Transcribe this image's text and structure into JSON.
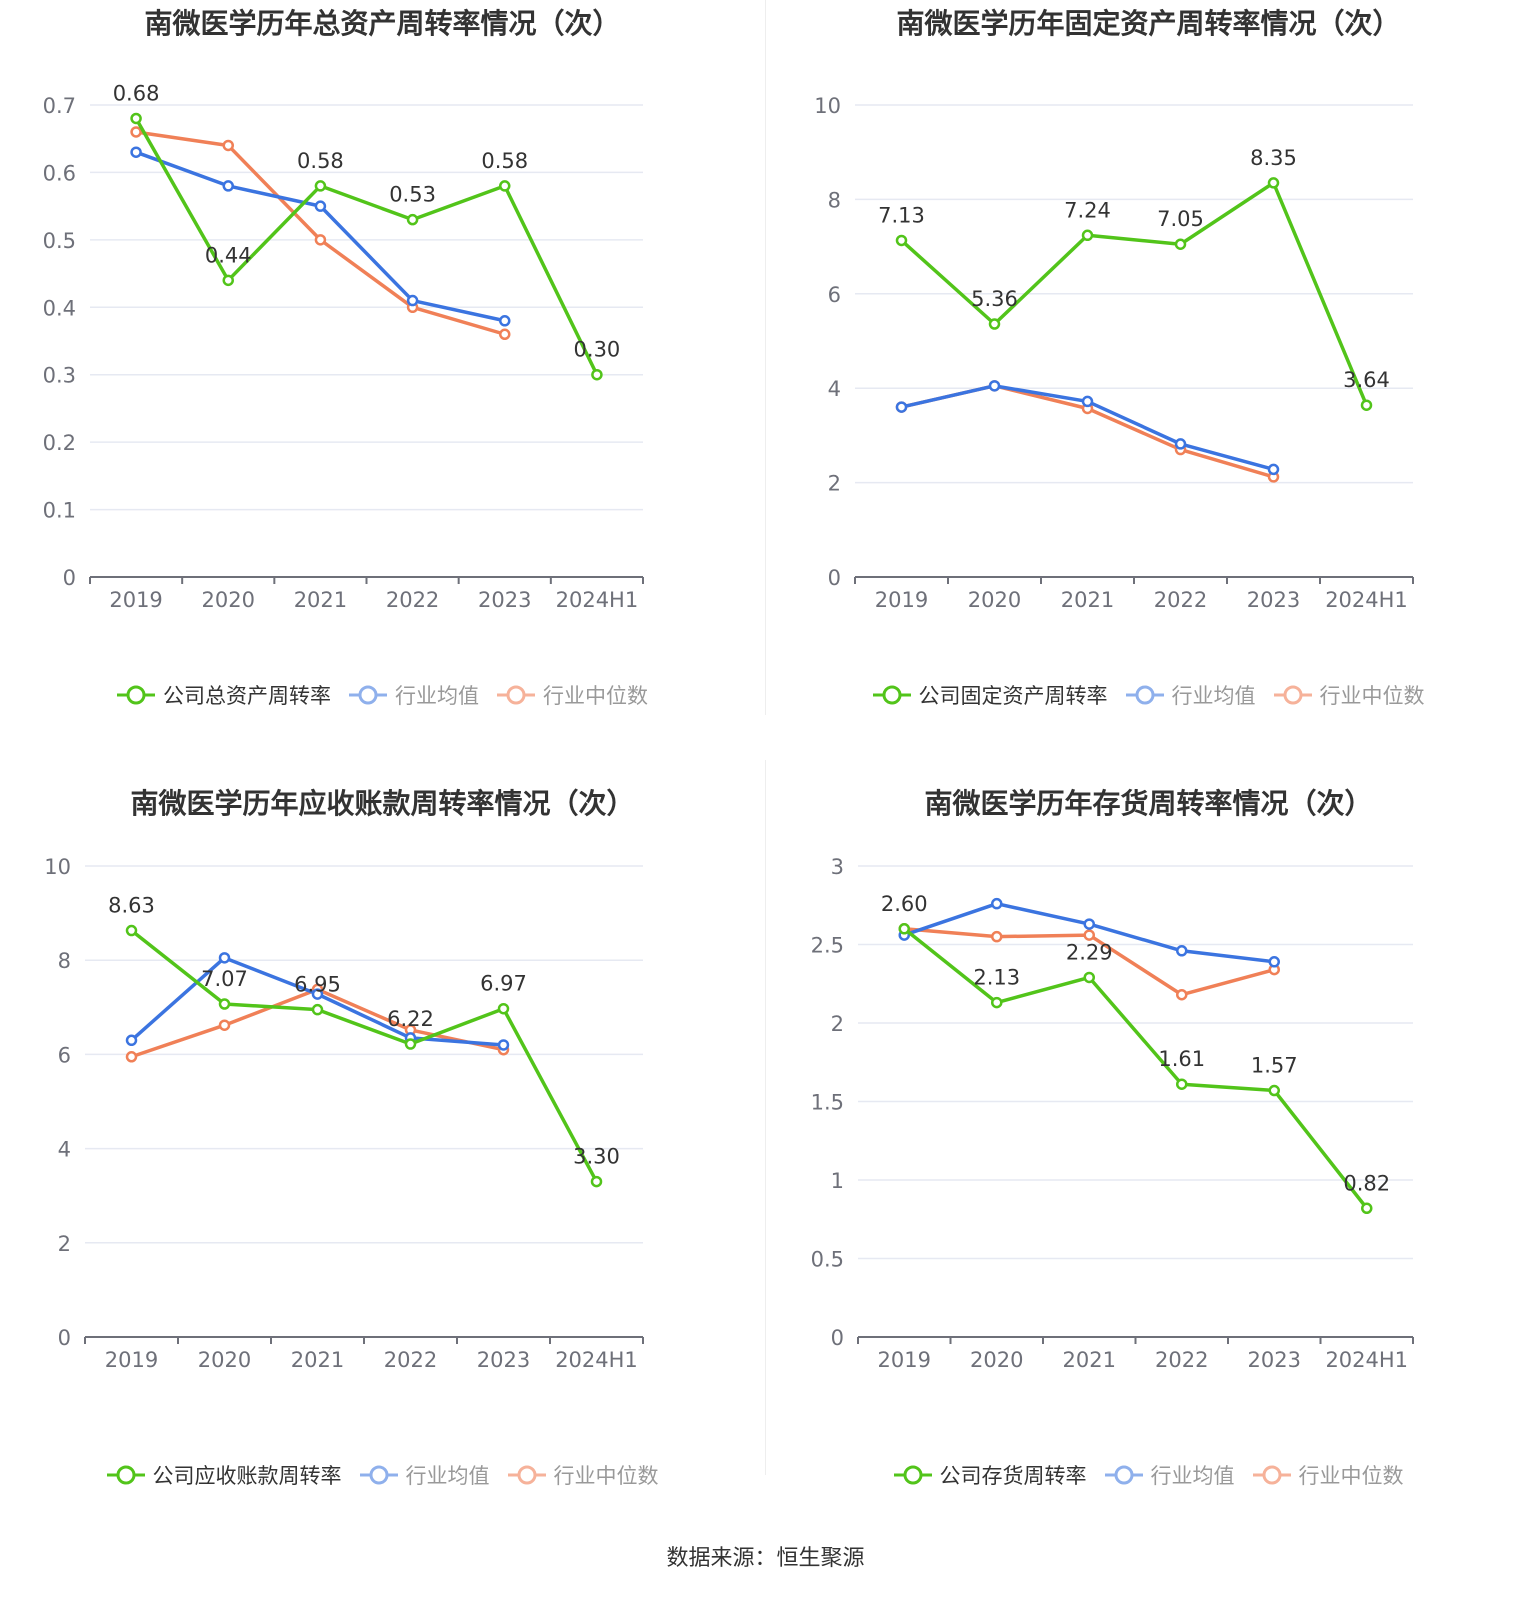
{
  "source_text": "数据来源：恒生聚源",
  "colors": {
    "company": "#52c41a",
    "avg": "#3b74e0",
    "median": "#f08057",
    "grid": "#e6e9f2",
    "axis": "#6e7079",
    "tick_text": "#6e7079"
  },
  "chart_data": [
    {
      "type": "line",
      "title": "南微医学历年总资产周转率情况（次）",
      "categories": [
        "2019",
        "2020",
        "2021",
        "2022",
        "2023",
        "2024H1"
      ],
      "ylim": [
        0,
        0.7
      ],
      "yticks": [
        0,
        0.1,
        0.2,
        0.3,
        0.4,
        0.5,
        0.6,
        0.7
      ],
      "ytick_labels": [
        "0",
        "0.1",
        "0.2",
        "0.3",
        "0.4",
        "0.5",
        "0.6",
        "0.7"
      ],
      "series": [
        {
          "name": "公司总资产周转率",
          "values": [
            0.68,
            0.44,
            0.58,
            0.53,
            0.58,
            0.3
          ],
          "labels": [
            "0.68",
            "0.44",
            "0.58",
            "0.53",
            "0.58",
            "0.30"
          ]
        },
        {
          "name": "行业均值",
          "values": [
            0.63,
            0.58,
            0.55,
            0.41,
            0.38,
            null
          ]
        },
        {
          "name": "行业中位数",
          "values": [
            0.66,
            0.64,
            0.5,
            0.4,
            0.36,
            null
          ]
        }
      ]
    },
    {
      "type": "line",
      "title": "南微医学历年固定资产周转率情况（次）",
      "categories": [
        "2019",
        "2020",
        "2021",
        "2022",
        "2023",
        "2024H1"
      ],
      "ylim": [
        0,
        10
      ],
      "yticks": [
        0,
        2,
        4,
        6,
        8,
        10
      ],
      "ytick_labels": [
        "0",
        "2",
        "4",
        "6",
        "8",
        "10"
      ],
      "series": [
        {
          "name": "公司固定资产周转率",
          "values": [
            7.13,
            5.36,
            7.24,
            7.05,
            8.35,
            3.64
          ],
          "labels": [
            "7.13",
            "5.36",
            "7.24",
            "7.05",
            "8.35",
            "3.64"
          ]
        },
        {
          "name": "行业均值",
          "values": [
            3.6,
            4.05,
            3.72,
            2.82,
            2.28,
            null
          ]
        },
        {
          "name": "行业中位数",
          "values": [
            3.6,
            4.05,
            3.57,
            2.7,
            2.12,
            null
          ]
        }
      ]
    },
    {
      "type": "line",
      "title": "南微医学历年应收账款周转率情况（次）",
      "categories": [
        "2019",
        "2020",
        "2021",
        "2022",
        "2023",
        "2024H1"
      ],
      "ylim": [
        0,
        10
      ],
      "yticks": [
        0,
        2,
        4,
        6,
        8,
        10
      ],
      "ytick_labels": [
        "0",
        "2",
        "4",
        "6",
        "8",
        "10"
      ],
      "series": [
        {
          "name": "公司应收账款周转率",
          "values": [
            8.63,
            7.07,
            6.95,
            6.22,
            6.97,
            3.3
          ],
          "labels": [
            "8.63",
            "7.07",
            "6.95",
            "6.22",
            "6.97",
            "3.30"
          ]
        },
        {
          "name": "行业均值",
          "values": [
            6.3,
            8.05,
            7.28,
            6.35,
            6.2,
            null
          ]
        },
        {
          "name": "行业中位数",
          "values": [
            5.95,
            6.62,
            7.38,
            6.52,
            6.1,
            null
          ]
        }
      ]
    },
    {
      "type": "line",
      "title": "南微医学历年存货周转率情况（次）",
      "categories": [
        "2019",
        "2020",
        "2021",
        "2022",
        "2023",
        "2024H1"
      ],
      "ylim": [
        0,
        3
      ],
      "yticks": [
        0,
        0.5,
        1,
        1.5,
        2,
        2.5,
        3
      ],
      "ytick_labels": [
        "0",
        "0.5",
        "1",
        "1.5",
        "2",
        "2.5",
        "3"
      ],
      "series": [
        {
          "name": "公司存货周转率",
          "values": [
            2.6,
            2.13,
            2.29,
            1.61,
            1.57,
            0.82
          ],
          "labels": [
            "2.60",
            "2.13",
            "2.29",
            "1.61",
            "1.57",
            "0.82"
          ]
        },
        {
          "name": "行业均值",
          "values": [
            2.56,
            2.76,
            2.63,
            2.46,
            2.39,
            null
          ]
        },
        {
          "name": "行业中位数",
          "values": [
            2.6,
            2.55,
            2.56,
            2.18,
            2.34,
            null
          ]
        }
      ]
    }
  ]
}
